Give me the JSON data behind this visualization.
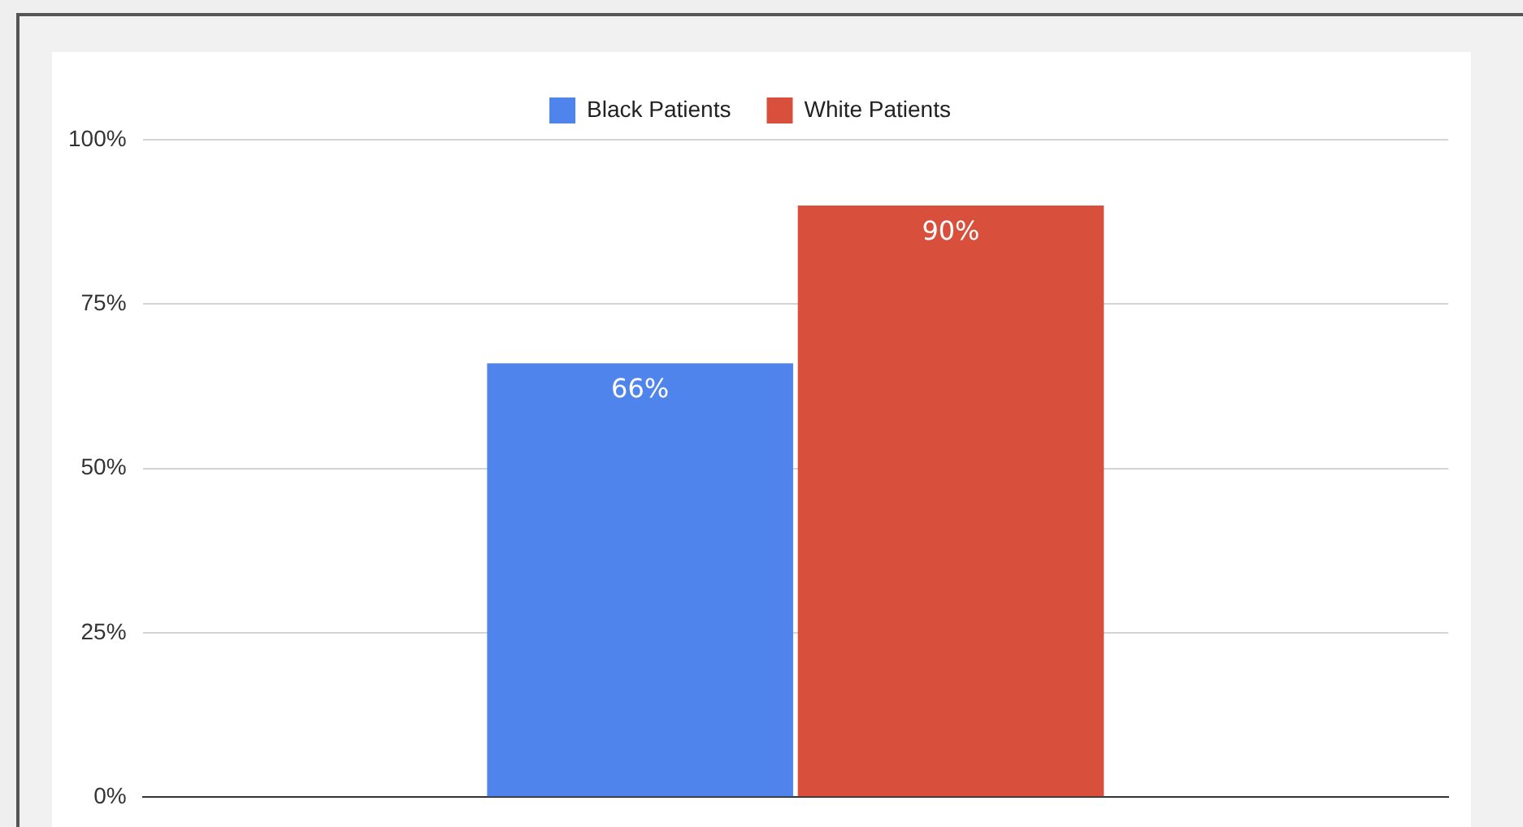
{
  "chart_data": {
    "type": "bar",
    "categories": [
      null
    ],
    "series": [
      {
        "name": "Black Patients",
        "color": "#4f84ec",
        "values": [
          66
        ],
        "value_labels": [
          "66%"
        ]
      },
      {
        "name": "White Patients",
        "color": "#d8503b",
        "values": [
          90
        ],
        "value_labels": [
          "90%"
        ]
      }
    ],
    "ylim": [
      0,
      100
    ],
    "yticks": [
      {
        "value": 0,
        "label": "0%"
      },
      {
        "value": 25,
        "label": "25%"
      },
      {
        "value": 50,
        "label": "50%"
      },
      {
        "value": 75,
        "label": "75%"
      },
      {
        "value": 100,
        "label": "100%"
      }
    ],
    "grid": "y",
    "legend": "top",
    "tick_labels": "y"
  }
}
